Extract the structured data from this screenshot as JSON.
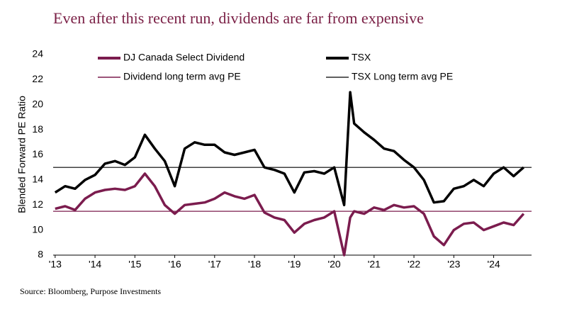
{
  "chart_data": {
    "type": "line",
    "title": "Even after this recent run, dividends are far from expensive",
    "ylabel": "Blended Forward PE Ratio",
    "source": "Source: Bloomberg, Purpose Investments",
    "x": [
      13,
      13.25,
      13.5,
      13.75,
      14,
      14.25,
      14.5,
      14.75,
      15,
      15.25,
      15.5,
      15.75,
      16,
      16.25,
      16.5,
      16.75,
      17,
      17.25,
      17.5,
      17.75,
      18,
      18.25,
      18.5,
      18.75,
      19,
      19.25,
      19.5,
      19.75,
      20,
      20.25,
      20.4,
      20.5,
      20.75,
      21,
      21.25,
      21.5,
      21.75,
      22,
      22.25,
      22.5,
      22.75,
      23,
      23.25,
      23.5,
      23.75,
      24,
      24.25,
      24.5,
      24.75
    ],
    "series": [
      {
        "name": "DJ Canada Select Dividend",
        "color": "#7b1c4e",
        "values": [
          11.7,
          11.9,
          11.6,
          12.5,
          13.0,
          13.2,
          13.3,
          13.2,
          13.5,
          14.5,
          13.5,
          12.0,
          11.3,
          12.0,
          12.1,
          12.2,
          12.5,
          13.0,
          12.7,
          12.5,
          12.8,
          11.4,
          11.0,
          10.8,
          9.8,
          10.5,
          10.8,
          11.0,
          11.5,
          8.0,
          11.0,
          11.5,
          11.3,
          11.8,
          11.6,
          12.0,
          11.8,
          11.9,
          11.3,
          9.5,
          8.8,
          10.0,
          10.5,
          10.6,
          10.0,
          10.3,
          10.6,
          10.4,
          11.3
        ]
      },
      {
        "name": "TSX",
        "color": "#000000",
        "values": [
          13.0,
          13.5,
          13.3,
          14.0,
          14.4,
          15.3,
          15.5,
          15.2,
          15.8,
          17.6,
          16.5,
          15.5,
          13.5,
          16.5,
          17.0,
          16.8,
          16.8,
          16.2,
          16.0,
          16.2,
          16.4,
          15.0,
          14.8,
          14.5,
          13.0,
          14.6,
          14.7,
          14.5,
          15.0,
          12.0,
          21.0,
          18.5,
          17.8,
          17.2,
          16.5,
          16.3,
          15.6,
          15.0,
          14.0,
          12.2,
          12.3,
          13.3,
          13.5,
          14.0,
          13.5,
          14.5,
          15.0,
          14.3,
          15.0
        ]
      }
    ],
    "reference_lines": [
      {
        "name": "Dividend long term avg PE",
        "color": "#7b1c4e",
        "value": 11.5
      },
      {
        "name": "TSX Long term avg PE",
        "color": "#000000",
        "value": 15.0
      }
    ],
    "xlim": [
      12.95,
      24.95
    ],
    "xticks": [
      {
        "value": 13,
        "label": "'13"
      },
      {
        "value": 14,
        "label": "'14"
      },
      {
        "value": 15,
        "label": "'15"
      },
      {
        "value": 16,
        "label": "'16"
      },
      {
        "value": 17,
        "label": "'17"
      },
      {
        "value": 18,
        "label": "'18"
      },
      {
        "value": 19,
        "label": "'19"
      },
      {
        "value": 20,
        "label": "'20"
      },
      {
        "value": 21,
        "label": "'21"
      },
      {
        "value": 22,
        "label": "'22"
      },
      {
        "value": 23,
        "label": "'23"
      },
      {
        "value": 24,
        "label": "'24"
      }
    ],
    "ylim": [
      8,
      24
    ],
    "yticks": [
      8,
      10,
      12,
      14,
      16,
      18,
      20,
      22,
      24
    ]
  }
}
